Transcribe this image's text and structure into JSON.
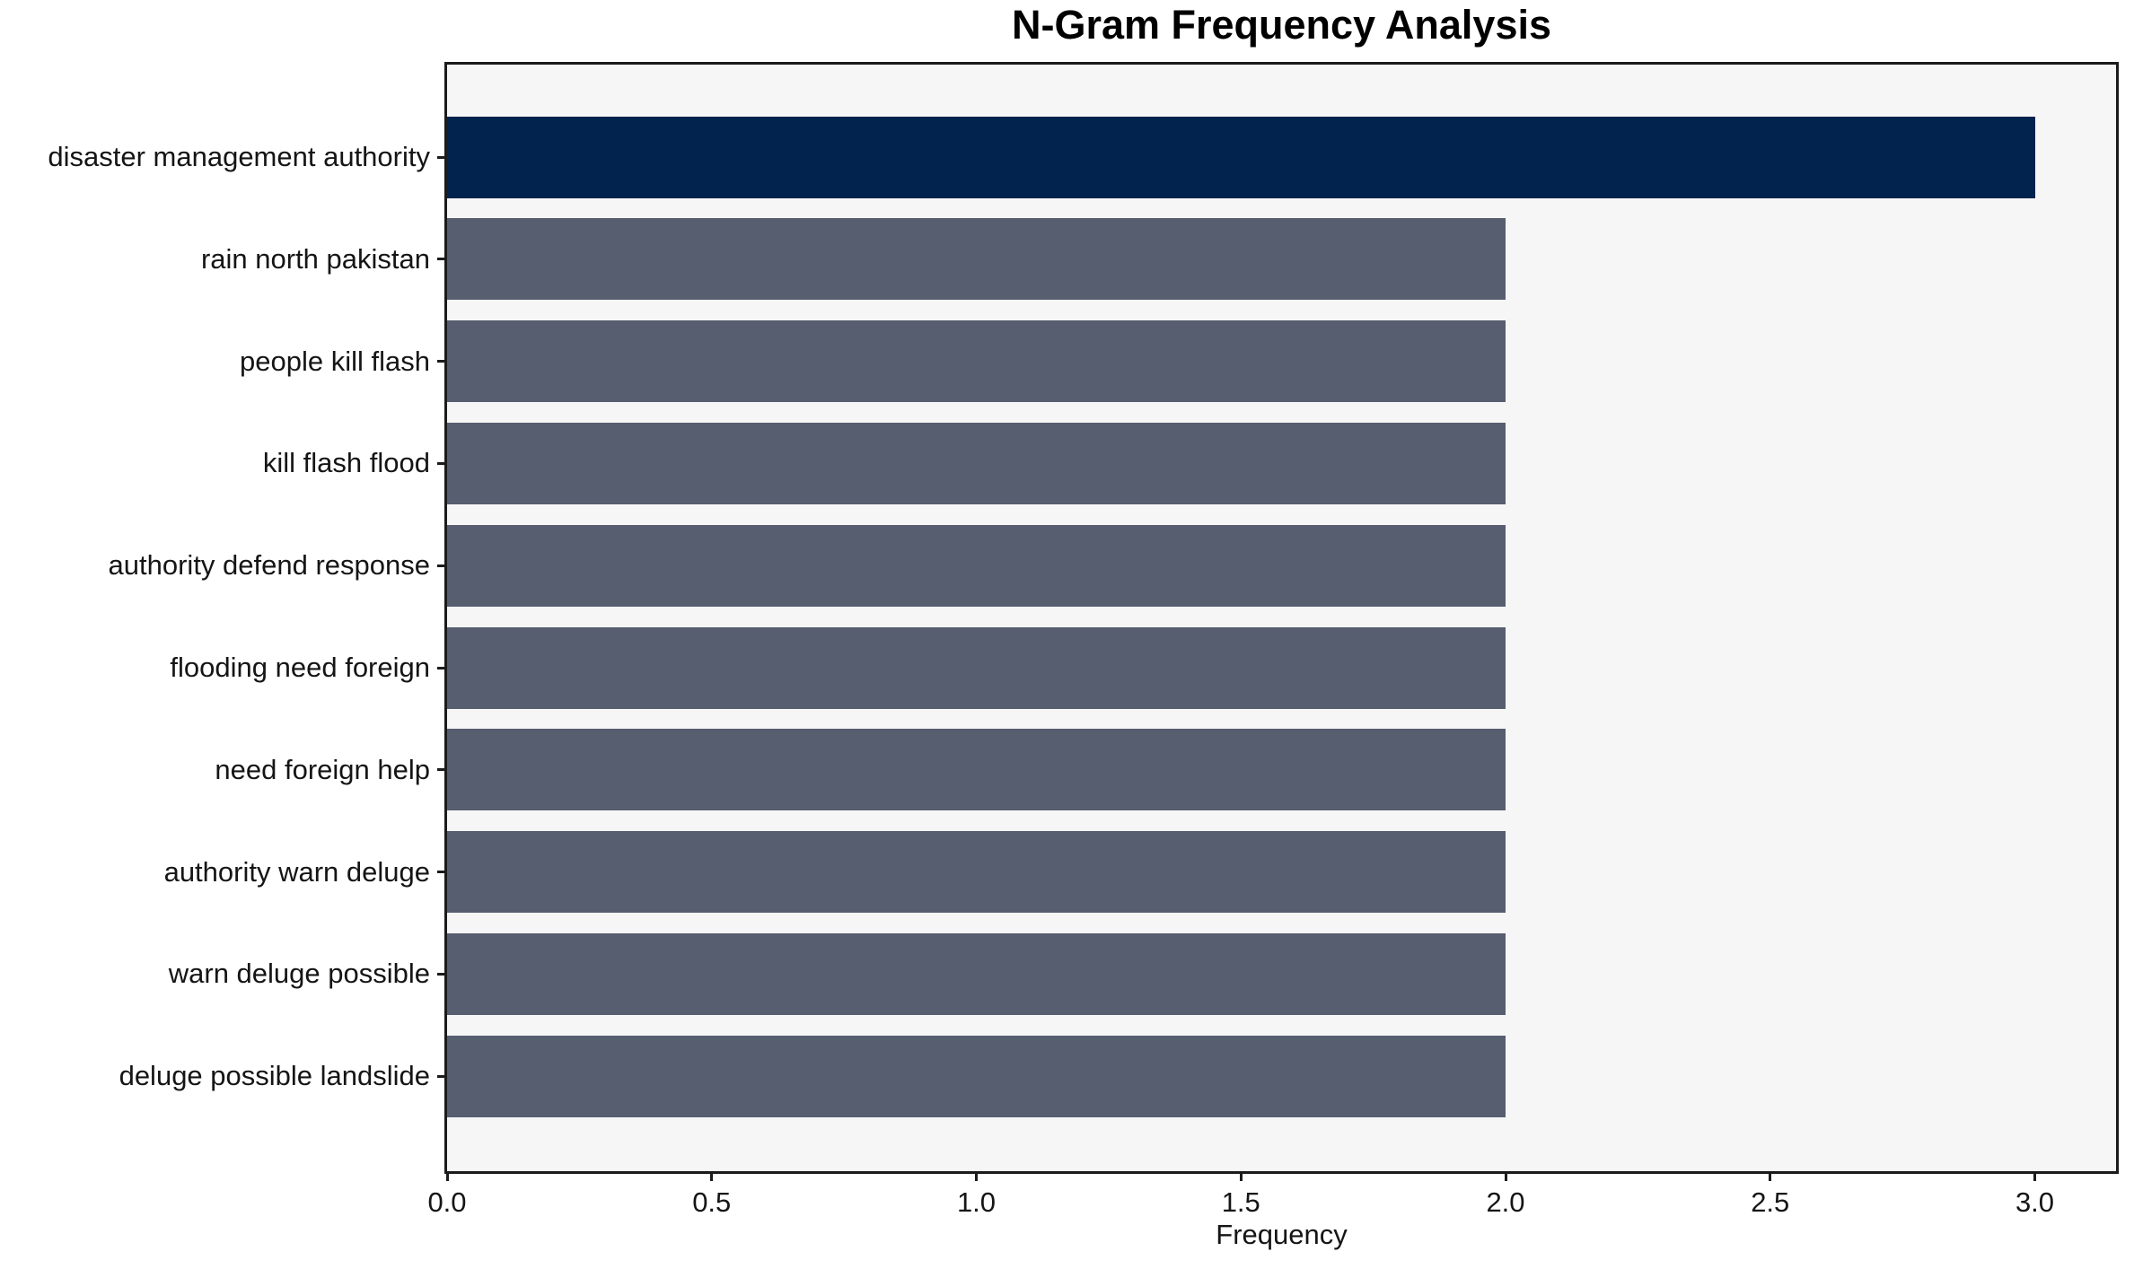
{
  "figure": {
    "background": "#ffffff",
    "plot_background": "#f7f6f6",
    "spine_color": "#1b1b1b",
    "text_color": "#151515"
  },
  "chart_data": {
    "type": "bar",
    "orientation": "horizontal",
    "title": "N-Gram Frequency Analysis",
    "xlabel": "Frequency",
    "ylabel": "",
    "categories": [
      "disaster management authority",
      "rain north pakistan",
      "people kill flash",
      "kill flash flood",
      "authority defend response",
      "flooding need foreign",
      "need foreign help",
      "authority warn deluge",
      "warn deluge possible",
      "deluge possible landslide"
    ],
    "values": [
      3,
      2,
      2,
      2,
      2,
      2,
      2,
      2,
      2,
      2
    ],
    "bar_colors": [
      "#02234e",
      "#565e6f",
      "#565e6f",
      "#565e6f",
      "#565e6f",
      "#565e6f",
      "#565e6f",
      "#565e6f",
      "#565e6f",
      "#565e6f"
    ],
    "xlim": [
      0,
      3.15
    ],
    "xticks": [
      0,
      0.5,
      1,
      1.5,
      2,
      2.5,
      3
    ],
    "xtick_labels": [
      "0.0",
      "0.5",
      "1.0",
      "1.5",
      "2.0",
      "2.5",
      "3.0"
    ],
    "grid": false,
    "legend": null
  }
}
